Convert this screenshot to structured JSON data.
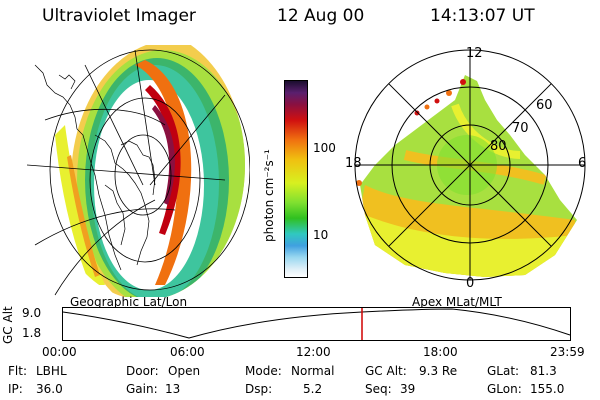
{
  "header": {
    "instrument": "Ultraviolet Imager",
    "date": "12 Aug 00",
    "time": "14:13:07 UT"
  },
  "geo_panel": {
    "caption": "Geographic Lat/Lon"
  },
  "colorbar": {
    "label": "photon cm⁻²s⁻¹",
    "tick_labels": [
      "100",
      "10"
    ],
    "scale": "log",
    "colors": [
      "#1a0d2e",
      "#5a1f6e",
      "#8a1040",
      "#d01010",
      "#f07010",
      "#f0c010",
      "#d8f020",
      "#80e030",
      "#30c020",
      "#30c8c0",
      "#40a0e0",
      "#9ad8f0",
      "#e0f0f8",
      "#ffffff"
    ]
  },
  "polar_panel": {
    "caption": "Apex MLat/MLT",
    "mlt_labels": {
      "top": "12",
      "left": "18",
      "right": "6",
      "bottom": "0"
    },
    "lat_labels": [
      "60",
      "70",
      "80"
    ]
  },
  "altitude_plot": {
    "ylabel": "GC Alt",
    "yticks": [
      "9.0",
      "1.8"
    ],
    "xticks": [
      "00:00",
      "06:00",
      "12:00",
      "18:00",
      "23:59"
    ],
    "current_time_marker": "14:13",
    "marker_color": "#d00000"
  },
  "info": {
    "filter": {
      "label": "Flt:",
      "value": "LBHL"
    },
    "door": {
      "label": "Door:",
      "value": "Open"
    },
    "mode": {
      "label": "Mode:",
      "value": "Normal"
    },
    "gc_alt": {
      "label": "GC Alt:",
      "value": "9.3 Re"
    },
    "glat": {
      "label": "GLat:",
      "value": "81.3"
    },
    "ip": {
      "label": "IP:",
      "value": "36.0"
    },
    "gain": {
      "label": "Gain:",
      "value": "13"
    },
    "dsp": {
      "label": "Dsp:",
      "value": "5.2"
    },
    "seq": {
      "label": "Seq:",
      "value": "39"
    },
    "glon": {
      "label": "GLon:",
      "value": "155.0"
    }
  }
}
